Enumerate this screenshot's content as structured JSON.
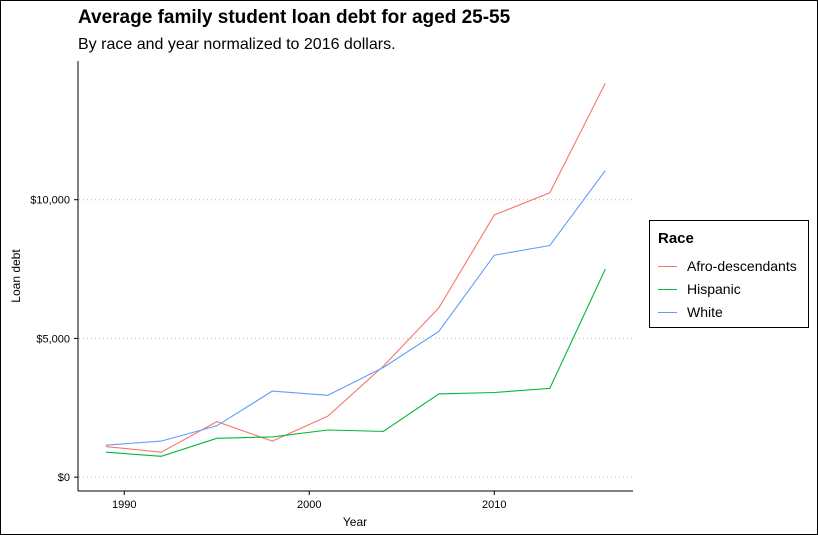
{
  "chart_data": {
    "type": "line",
    "title": "Average family student loan debt for aged 25-55",
    "subtitle": "By race and year normalized to 2016 dollars.",
    "xlabel": "Year",
    "ylabel": "Loan debt",
    "xlim": [
      1987.5,
      2017.5
    ],
    "ylim": [
      -500,
      15000
    ],
    "x_ticks": [
      1990,
      2000,
      2010
    ],
    "x_tick_labels": [
      "1990",
      "2000",
      "2010"
    ],
    "y_ticks": [
      0,
      5000,
      10000
    ],
    "y_tick_labels": [
      "$0",
      "$5,000",
      "$10,000"
    ],
    "grid": "dotted horizontal",
    "legend_position": "right",
    "legend_title": "Race",
    "x": [
      1989,
      1992,
      1995,
      1998,
      2001,
      2004,
      2007,
      2010,
      2013,
      2016
    ],
    "series": [
      {
        "name": "Afro-descendants",
        "color": "#f8766d",
        "values": [
          1100,
          900,
          2000,
          1300,
          2200,
          4000,
          6100,
          9450,
          10250,
          14200
        ]
      },
      {
        "name": "Hispanic",
        "color": "#00ba38",
        "values": [
          900,
          750,
          1400,
          1450,
          1700,
          1650,
          3000,
          3050,
          3200,
          7500
        ]
      },
      {
        "name": "White",
        "color": "#619cff",
        "values": [
          1150,
          1300,
          1850,
          3100,
          2950,
          3950,
          5250,
          8000,
          8350,
          11050
        ]
      }
    ]
  }
}
